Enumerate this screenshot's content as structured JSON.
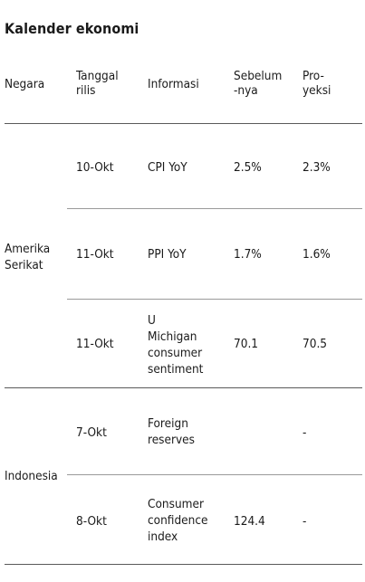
{
  "title": "Kalender ekonomi",
  "headers": {
    "country": "Negara",
    "date_line1": "Tanggal",
    "date_line2": "rilis",
    "info": "Informasi",
    "prev_line1": "Sebelum",
    "prev_line2": "-nya",
    "proj_line1": "Pro-",
    "proj_line2": "yeksi"
  },
  "groups": [
    {
      "country_line1": "Amerika",
      "country_line2": "Serikat",
      "rows": [
        {
          "date": "10-Okt",
          "info": [
            "CPI YoY"
          ],
          "prev": "2.5%",
          "proj": "2.3%"
        },
        {
          "date": "11-Okt",
          "info": [
            "PPI YoY"
          ],
          "prev": "1.7%",
          "proj": "1.6%"
        },
        {
          "date": "11-Okt",
          "info": [
            "U",
            "Michigan",
            "consumer",
            "sentiment"
          ],
          "prev": "70.1",
          "proj": "70.5"
        }
      ]
    },
    {
      "country_line1": "Indonesia",
      "rows": [
        {
          "date": "7-Okt",
          "info": [
            "Foreign",
            "reserves"
          ],
          "prev": "",
          "proj": "-"
        },
        {
          "date": "8-Okt",
          "info": [
            "Consumer",
            "confidence",
            "index"
          ],
          "prev": "124.4",
          "proj": "-"
        }
      ]
    }
  ]
}
